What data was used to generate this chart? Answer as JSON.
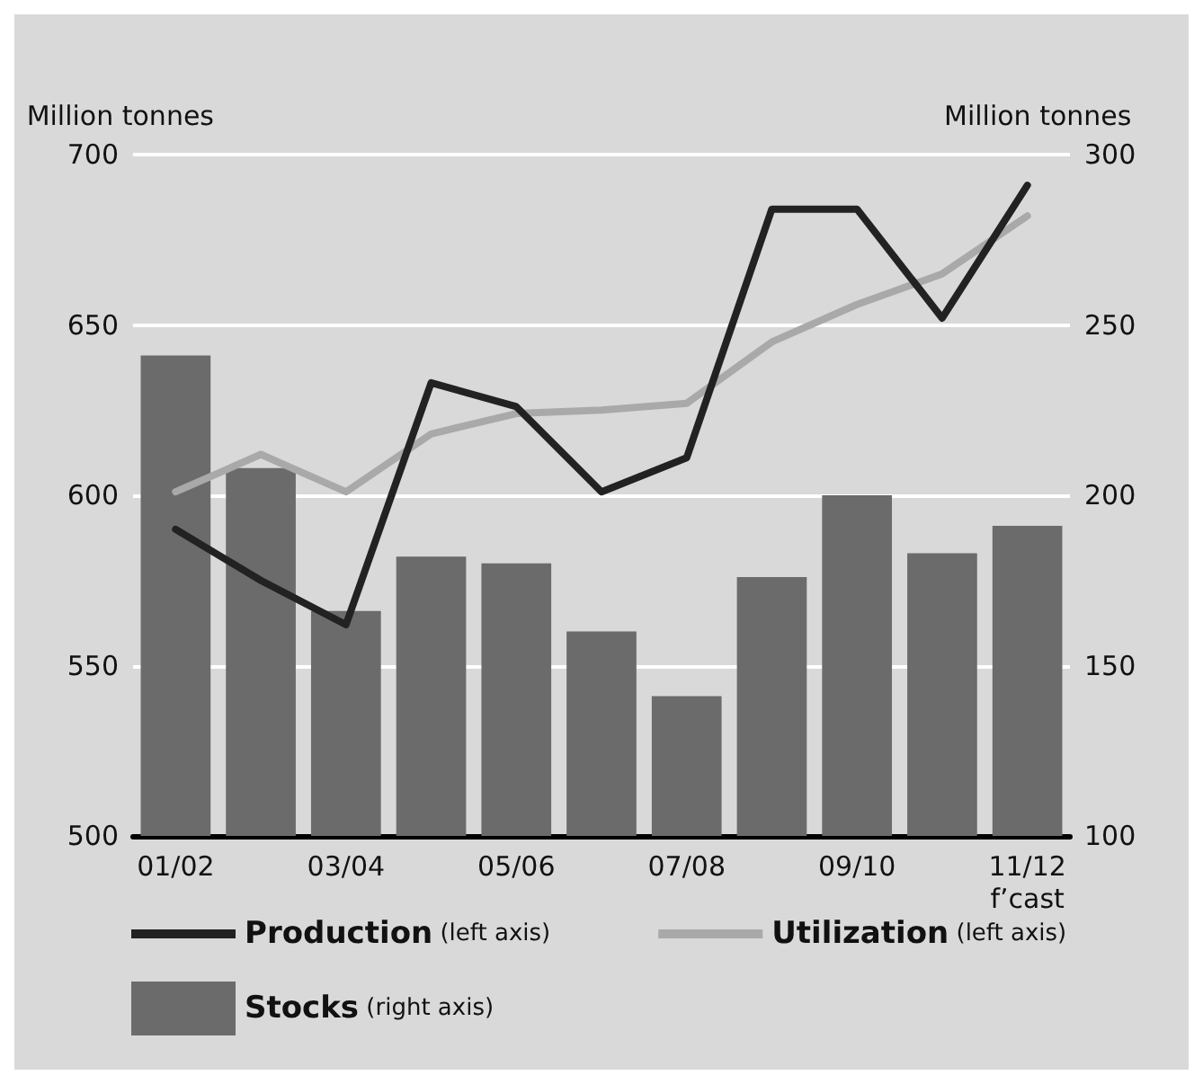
{
  "chart_data": {
    "type": "bar",
    "categories": [
      "01/02",
      null,
      "03/04",
      null,
      "05/06",
      null,
      "07/08",
      null,
      "09/10",
      null,
      "11/12\nf’cast"
    ],
    "ylabel": "Million tonnes",
    "y2label": "Million tonnes",
    "series": [
      {
        "name": "Stocks (right axis)",
        "axis": "y2",
        "color": "#6b6b6b",
        "values": [
          241,
          208,
          166,
          182,
          180,
          160,
          141,
          176,
          200,
          183,
          191
        ]
      },
      {
        "name": "Production (left axis)",
        "type": "line",
        "color": "#222222",
        "values": [
          590,
          575,
          562,
          633,
          626,
          601,
          611,
          684,
          684,
          652,
          691
        ]
      },
      {
        "name": "Utilization (left axis)",
        "type": "line",
        "color": "#a9a9a9",
        "values": [
          601,
          612,
          601,
          618,
          624,
          625,
          627,
          645,
          656,
          665,
          682
        ]
      }
    ],
    "ylim": [
      500,
      700
    ],
    "yticks": [
      500,
      550,
      600,
      650,
      700
    ],
    "y2lim": [
      100,
      300
    ],
    "y2ticks": [
      100,
      150,
      200,
      250,
      300
    ],
    "grid": "y",
    "legend": "bottom",
    "marker": "none",
    "line_style": "solid"
  }
}
